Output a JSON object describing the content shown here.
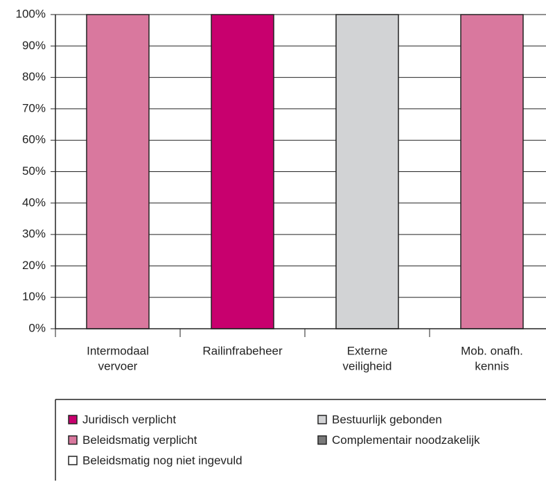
{
  "chart_data": {
    "type": "stacked_bar",
    "categories": [
      [
        "Intermodaal",
        "vervoer"
      ],
      [
        "Railinfrabeheer"
      ],
      [
        "Externe",
        "veiligheid"
      ],
      [
        "Mob. onafh.",
        "kennis"
      ]
    ],
    "series": [
      {
        "name": "Juridisch verplicht",
        "color": "#c8006e",
        "values": [
          0,
          100,
          0,
          0
        ]
      },
      {
        "name": "Beleidsmatig verplicht",
        "color": "#d9789e",
        "values": [
          100,
          0,
          0,
          100
        ]
      },
      {
        "name": "Beleidsmatig nog niet ingevuld",
        "color": "#ffffff",
        "values": [
          0,
          0,
          0,
          0
        ]
      },
      {
        "name": "Bestuurlijk gebonden",
        "color": "#d2d3d5",
        "values": [
          0,
          0,
          100,
          0
        ]
      },
      {
        "name": "Complementair noodzakelijk",
        "color": "#7a7a7a",
        "values": [
          0,
          0,
          0,
          0
        ]
      }
    ],
    "ylim": [
      0,
      100
    ],
    "yticks": [
      {
        "value": 0,
        "label": "0%"
      },
      {
        "value": 10,
        "label": "10%"
      },
      {
        "value": 20,
        "label": "20%"
      },
      {
        "value": 30,
        "label": "30%"
      },
      {
        "value": 40,
        "label": "40%"
      },
      {
        "value": 50,
        "label": "50%"
      },
      {
        "value": 60,
        "label": "60%"
      },
      {
        "value": 70,
        "label": "70%"
      },
      {
        "value": 80,
        "label": "80%"
      },
      {
        "value": 90,
        "label": "90%"
      },
      {
        "value": 100,
        "label": "100%"
      }
    ],
    "grid": true
  }
}
